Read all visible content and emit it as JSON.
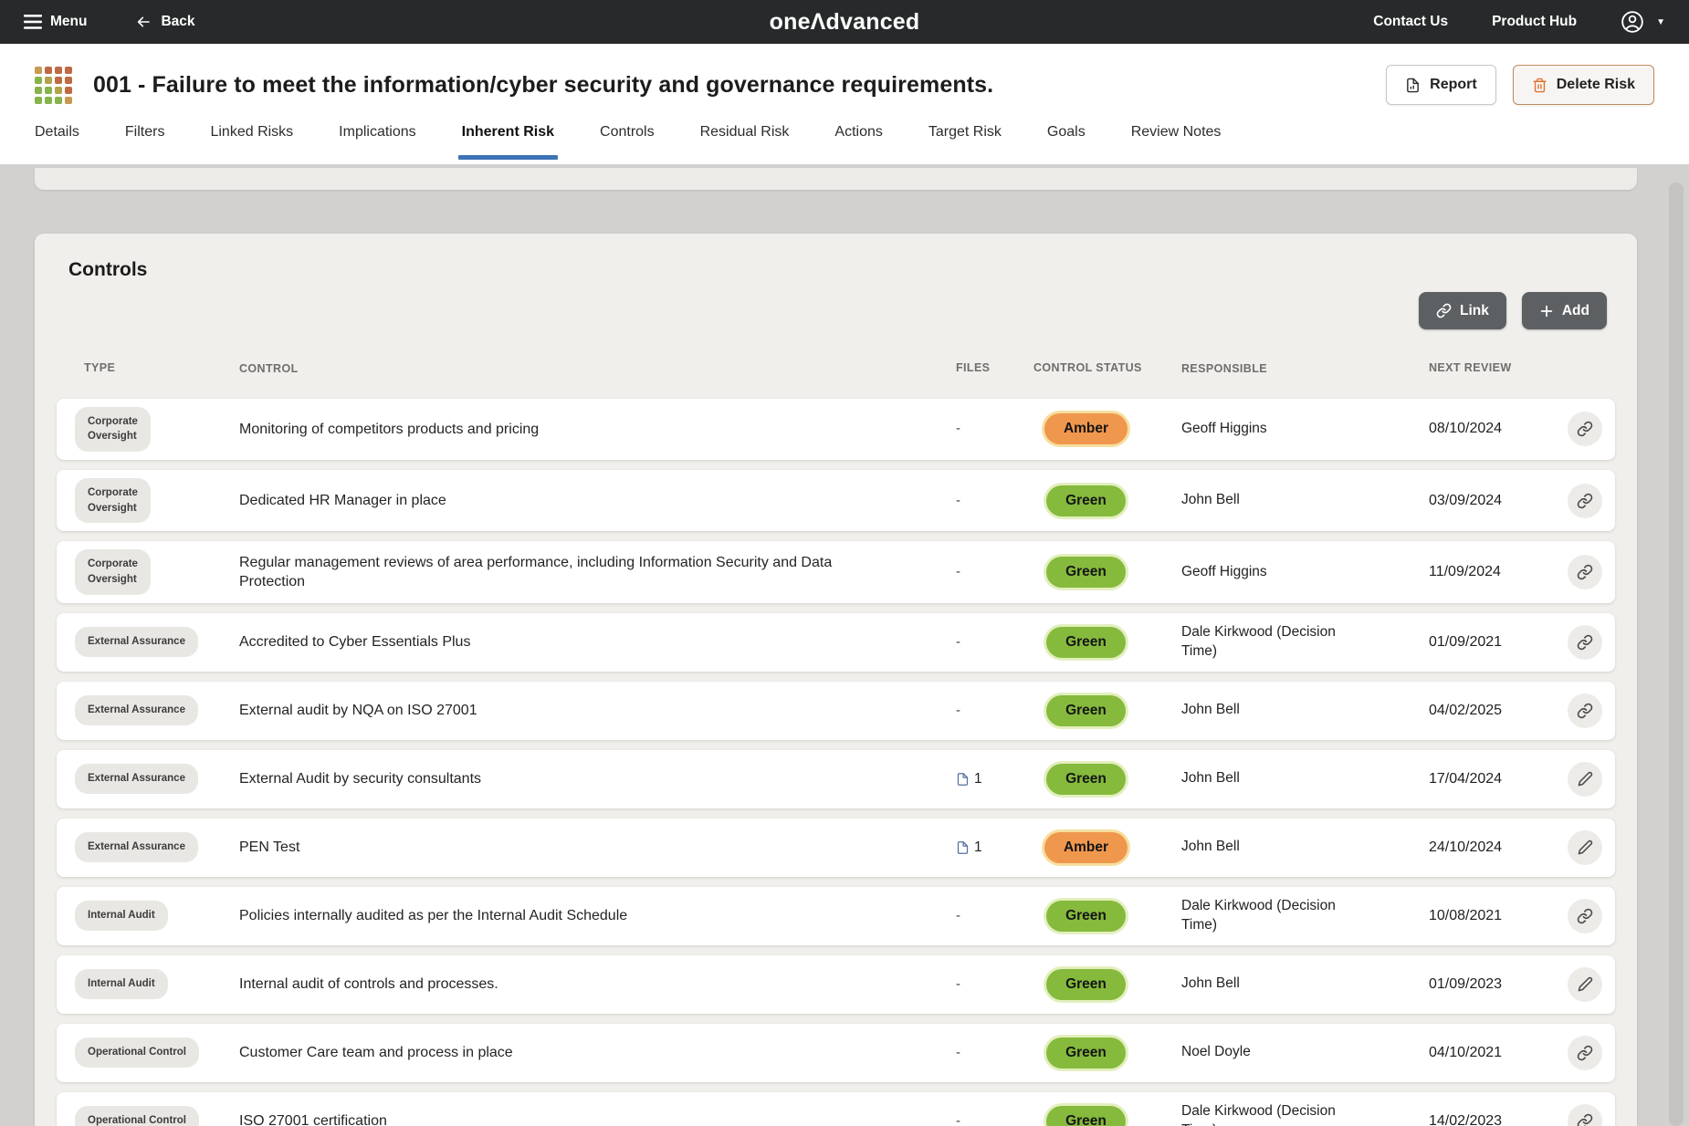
{
  "topbar": {
    "menu_label": "Menu",
    "back_label": "Back",
    "logo_part1": "one",
    "logo_part2": "Λdvanced",
    "contact_label": "Contact Us",
    "product_hub_label": "Product Hub"
  },
  "header": {
    "title": "001 - Failure to meet the information/cyber security and governance requirements.",
    "report_label": "Report",
    "delete_label": "Delete Risk",
    "matrix_colors": [
      "#c69a52",
      "#bd6a45",
      "#bd6a45",
      "#bd6a45",
      "#86b44a",
      "#b3a24b",
      "#bd6a45",
      "#bd6a45",
      "#86b44a",
      "#86b44a",
      "#b3a24b",
      "#bd6a45",
      "#86b44a",
      "#86b44a",
      "#86b44a",
      "#c69a52"
    ]
  },
  "tabs": {
    "items": [
      {
        "label": "Details",
        "active": false
      },
      {
        "label": "Filters",
        "active": false
      },
      {
        "label": "Linked Risks",
        "active": false
      },
      {
        "label": "Implications",
        "active": false
      },
      {
        "label": "Inherent Risk",
        "active": true
      },
      {
        "label": "Controls",
        "active": false
      },
      {
        "label": "Residual Risk",
        "active": false
      },
      {
        "label": "Actions",
        "active": false
      },
      {
        "label": "Target Risk",
        "active": false
      },
      {
        "label": "Goals",
        "active": false
      },
      {
        "label": "Review Notes",
        "active": false
      }
    ]
  },
  "controls_panel": {
    "heading": "Controls",
    "link_label": "Link",
    "add_label": "Add",
    "columns": [
      "TYPE",
      "CONTROL",
      "FILES",
      "CONTROL STATUS",
      "RESPONSIBLE",
      "NEXT REVIEW"
    ],
    "status_colors": {
      "Amber": "#f0974e",
      "Green": "#85ba3d"
    },
    "rows": [
      {
        "type": "Corporate\nOversight",
        "control": "Monitoring of competitors products and pricing",
        "files": null,
        "status": "Amber",
        "responsible": "Geoff Higgins",
        "next_review": "08/10/2024",
        "action": "link"
      },
      {
        "type": "Corporate\nOversight",
        "control": "Dedicated HR Manager in place",
        "files": null,
        "status": "Green",
        "responsible": "John Bell",
        "next_review": "03/09/2024",
        "action": "link"
      },
      {
        "type": "Corporate\nOversight",
        "control": "Regular management reviews of area performance, including Information Security and Data Protection",
        "files": null,
        "status": "Green",
        "responsible": "Geoff Higgins",
        "next_review": "11/09/2024",
        "action": "link"
      },
      {
        "type": "External Assurance",
        "control": "Accredited to Cyber Essentials Plus",
        "files": null,
        "status": "Green",
        "responsible": "Dale Kirkwood (Decision Time)",
        "next_review": "01/09/2021",
        "action": "link"
      },
      {
        "type": "External Assurance",
        "control": "External audit by NQA on ISO 27001",
        "files": null,
        "status": "Green",
        "responsible": "John Bell",
        "next_review": "04/02/2025",
        "action": "link"
      },
      {
        "type": "External Assurance",
        "control": "External Audit by security consultants",
        "files": "1",
        "status": "Green",
        "responsible": "John Bell",
        "next_review": "17/04/2024",
        "action": "edit"
      },
      {
        "type": "External Assurance",
        "control": "PEN Test",
        "files": "1",
        "status": "Amber",
        "responsible": "John Bell",
        "next_review": "24/10/2024",
        "action": "edit"
      },
      {
        "type": "Internal Audit",
        "control": "Policies internally audited as per the Internal Audit Schedule",
        "files": null,
        "status": "Green",
        "responsible": "Dale Kirkwood (Decision Time)",
        "next_review": "10/08/2021",
        "action": "link"
      },
      {
        "type": "Internal Audit",
        "control": "Internal audit of controls and processes.",
        "files": null,
        "status": "Green",
        "responsible": "John Bell",
        "next_review": "01/09/2023",
        "action": "edit"
      },
      {
        "type": "Operational Control",
        "control": "Customer Care team and process in place",
        "files": null,
        "status": "Green",
        "responsible": "Noel Doyle",
        "next_review": "04/10/2021",
        "action": "link"
      },
      {
        "type": "Operational Control",
        "control": "ISO 27001 certification",
        "files": null,
        "status": "Green",
        "responsible": "Dale Kirkwood (Decision Time)",
        "next_review": "14/02/2023",
        "action": "link"
      }
    ]
  }
}
